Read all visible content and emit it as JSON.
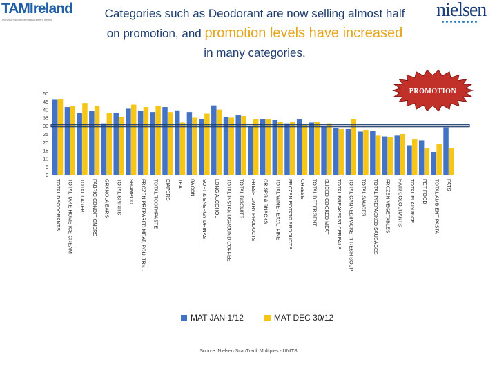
{
  "header": {
    "title_line1": "Categories such as Deodorant are now selling almost half",
    "title_line2a": "on promotion, and",
    "title_line2b": "promotion levels have increased",
    "title_line3": "in many categories."
  },
  "logos": {
    "left_text": "TAMIreland",
    "left_tagline": "Television Audience Measurement Ireland",
    "right_text": "nielsen"
  },
  "promo_badge": "PROMOTION",
  "source": "Source: Nielsen ScanTrack Multiples - UNITS",
  "colors": {
    "jan": "#4472c4",
    "dec": "#f5c518",
    "line": "#1f3e6e",
    "promo_red": "#c2302a"
  },
  "chart_data": {
    "type": "bar",
    "title": "",
    "xlabel": "",
    "ylabel": "",
    "ylim": [
      0,
      50
    ],
    "yticks": [
      0,
      5,
      10,
      15,
      20,
      25,
      30,
      35,
      40,
      45,
      50
    ],
    "reference_line": 30,
    "grid": false,
    "legend_position": "bottom",
    "categories": [
      "TOTAL DEODORANTS",
      "TOTAL TAKE HOME ICE CREAM",
      "TOTAL LAGER",
      "FABRIC CONDITIONERS",
      "GRANOLA BARS",
      "TOTAL SPIRITS",
      "SHAMPOO",
      "FROZEN PREPARED MEAT, POULTRY...",
      "TOTAL TOOTHPASTE",
      "DIAPERS",
      "TEA",
      "BACON",
      "SOFT & ENERGY DRINKS",
      "LONG ALCOHOL",
      "TOTAL INSTANT/GROUND COFFEE",
      "TOTAL BISCUITS",
      "FRESH DAIRY PRODUCTS",
      "CRISPS & SNACKS",
      "TOTAL WINE - EXCL. FINE",
      "FROZEN POTATO PRODUCTS",
      "CHEESE",
      "TOTAL DETERGENT",
      "SLICED COOKED MEAT",
      "TOTAL BREAKFAST CEREALS",
      "TOTAL CANNED/PACKET/FRESH SOUP",
      "TOTAL SAUCES",
      "TOTAL PREPACKED SAUSAGES",
      "FROZEN VEGETABLES",
      "HAIR COLOURANTS",
      "TOTAL PLAIN RICE",
      "PET FOOD",
      "TOTAL AMBIENT PASTA",
      "FATS"
    ],
    "series": [
      {
        "name": "MAT JAN 1/12",
        "values": [
          46,
          41.5,
          38,
          39,
          31.5,
          38,
          40.5,
          39,
          38.5,
          41.5,
          39.5,
          38.5,
          34,
          42.5,
          35.5,
          36.5,
          30,
          34,
          33.5,
          31.5,
          34,
          32,
          29.5,
          28.5,
          28,
          26.5,
          27,
          23.5,
          24,
          18,
          21,
          14,
          29
        ]
      },
      {
        "name": "MAT DEC 30/12",
        "values": [
          46.5,
          42,
          44,
          42,
          38,
          35.5,
          43,
          41.5,
          42,
          38.5,
          32,
          35,
          37.5,
          40,
          35,
          36,
          34,
          34,
          32.5,
          32.5,
          30.5,
          32.5,
          31.5,
          28,
          34,
          27.5,
          24,
          23,
          25,
          22,
          16.5,
          19,
          16.5
        ]
      }
    ]
  }
}
